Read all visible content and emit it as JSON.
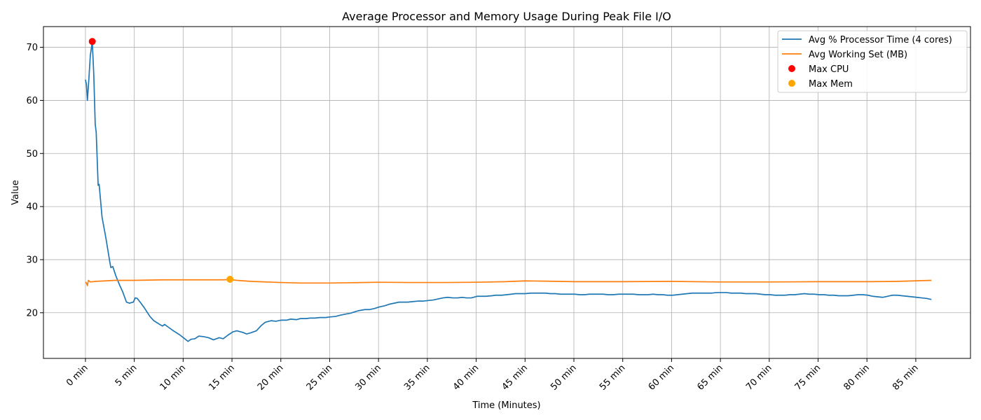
{
  "chart_data": {
    "type": "line",
    "title": "Average Processor and Memory Usage During Peak File I/O",
    "xlabel": "Time (Minutes)",
    "ylabel": "Value",
    "xlim": [
      -4.3,
      90.6
    ],
    "ylim": [
      11.4,
      73.9
    ],
    "grid": true,
    "legend_position": "top-right",
    "x_ticks": [
      0,
      5,
      10,
      15,
      20,
      25,
      30,
      35,
      40,
      45,
      50,
      55,
      60,
      65,
      70,
      75,
      80,
      85
    ],
    "x_tick_labels": [
      "0 min",
      "5 min",
      "10 min",
      "15 min",
      "20 min",
      "25 min",
      "30 min",
      "35 min",
      "40 min",
      "45 min",
      "50 min",
      "55 min",
      "60 min",
      "65 min",
      "70 min",
      "75 min",
      "80 min",
      "85 min"
    ],
    "y_ticks": [
      20,
      30,
      40,
      50,
      60,
      70
    ],
    "y_tick_labels": [
      "20",
      "30",
      "40",
      "50",
      "60",
      "70"
    ],
    "series": [
      {
        "name": "Avg % Processor Time (4 cores)",
        "color": "#1f77b4",
        "points": [
          [
            0,
            63.9
          ],
          [
            0.1,
            63
          ],
          [
            0.2,
            60
          ],
          [
            0.35,
            64
          ],
          [
            0.5,
            68.5
          ],
          [
            0.7,
            71
          ],
          [
            0.85,
            65
          ],
          [
            1.0,
            55.5
          ],
          [
            1.1,
            54
          ],
          [
            1.3,
            44
          ],
          [
            1.4,
            44.2
          ],
          [
            1.7,
            38
          ],
          [
            2.1,
            34
          ],
          [
            2.5,
            29.5
          ],
          [
            2.6,
            28.5
          ],
          [
            2.8,
            28.7
          ],
          [
            3.1,
            27
          ],
          [
            3.5,
            25.2
          ],
          [
            3.8,
            24
          ],
          [
            4.2,
            22
          ],
          [
            4.5,
            21.8
          ],
          [
            4.9,
            22
          ],
          [
            5.1,
            22.8
          ],
          [
            5.3,
            22.7
          ],
          [
            5.6,
            22
          ],
          [
            6.0,
            21
          ],
          [
            6.6,
            19.3
          ],
          [
            7.0,
            18.5
          ],
          [
            7.6,
            17.8
          ],
          [
            7.9,
            17.5
          ],
          [
            8.1,
            17.8
          ],
          [
            8.4,
            17.4
          ],
          [
            9.0,
            16.6
          ],
          [
            9.6,
            15.9
          ],
          [
            10.1,
            15.2
          ],
          [
            10.5,
            14.6
          ],
          [
            10.8,
            15
          ],
          [
            11.2,
            15.1
          ],
          [
            11.6,
            15.6
          ],
          [
            12.1,
            15.5
          ],
          [
            12.6,
            15.3
          ],
          [
            13.1,
            14.9
          ],
          [
            13.7,
            15.3
          ],
          [
            14.1,
            15.1
          ],
          [
            14.6,
            15.8
          ],
          [
            15.1,
            16.4
          ],
          [
            15.5,
            16.6
          ],
          [
            16.1,
            16.3
          ],
          [
            16.5,
            16
          ],
          [
            16.9,
            16.2
          ],
          [
            17.5,
            16.6
          ],
          [
            18.0,
            17.6
          ],
          [
            18.4,
            18.2
          ],
          [
            19.0,
            18.5
          ],
          [
            19.5,
            18.4
          ],
          [
            20.0,
            18.6
          ],
          [
            20.6,
            18.6
          ],
          [
            21.0,
            18.8
          ],
          [
            21.6,
            18.7
          ],
          [
            22.0,
            18.9
          ],
          [
            22.6,
            18.9
          ],
          [
            23.0,
            19.0
          ],
          [
            23.5,
            19.0
          ],
          [
            24.0,
            19.1
          ],
          [
            24.6,
            19.1
          ],
          [
            25.0,
            19.2
          ],
          [
            25.6,
            19.3
          ],
          [
            26.0,
            19.5
          ],
          [
            26.5,
            19.7
          ],
          [
            27.1,
            19.9
          ],
          [
            27.6,
            20.2
          ],
          [
            28.0,
            20.4
          ],
          [
            28.6,
            20.6
          ],
          [
            29.1,
            20.6
          ],
          [
            29.6,
            20.8
          ],
          [
            30.1,
            21.1
          ],
          [
            30.6,
            21.3
          ],
          [
            31.1,
            21.6
          ],
          [
            31.6,
            21.8
          ],
          [
            32.1,
            22.0
          ],
          [
            32.5,
            22.0
          ],
          [
            33.0,
            22.0
          ],
          [
            33.5,
            22.1
          ],
          [
            34.1,
            22.2
          ],
          [
            34.6,
            22.2
          ],
          [
            35.1,
            22.3
          ],
          [
            35.6,
            22.4
          ],
          [
            36.1,
            22.6
          ],
          [
            36.6,
            22.8
          ],
          [
            37.1,
            22.9
          ],
          [
            37.6,
            22.8
          ],
          [
            38.1,
            22.8
          ],
          [
            38.6,
            22.9
          ],
          [
            39.0,
            22.8
          ],
          [
            39.5,
            22.8
          ],
          [
            40.1,
            23.1
          ],
          [
            40.6,
            23.1
          ],
          [
            41.0,
            23.1
          ],
          [
            41.6,
            23.2
          ],
          [
            42.0,
            23.3
          ],
          [
            42.6,
            23.3
          ],
          [
            43.1,
            23.4
          ],
          [
            43.6,
            23.5
          ],
          [
            44.0,
            23.6
          ],
          [
            44.6,
            23.6
          ],
          [
            45.0,
            23.6
          ],
          [
            45.6,
            23.7
          ],
          [
            46.1,
            23.7
          ],
          [
            46.6,
            23.7
          ],
          [
            47.1,
            23.7
          ],
          [
            47.6,
            23.6
          ],
          [
            48.1,
            23.6
          ],
          [
            48.6,
            23.5
          ],
          [
            49.1,
            23.5
          ],
          [
            49.6,
            23.5
          ],
          [
            50.1,
            23.5
          ],
          [
            50.6,
            23.4
          ],
          [
            51.1,
            23.4
          ],
          [
            51.6,
            23.5
          ],
          [
            52.1,
            23.5
          ],
          [
            52.6,
            23.5
          ],
          [
            53.0,
            23.5
          ],
          [
            53.5,
            23.4
          ],
          [
            54.0,
            23.4
          ],
          [
            54.6,
            23.5
          ],
          [
            55.1,
            23.5
          ],
          [
            55.6,
            23.5
          ],
          [
            56.1,
            23.5
          ],
          [
            56.6,
            23.4
          ],
          [
            57.1,
            23.4
          ],
          [
            57.6,
            23.4
          ],
          [
            58.1,
            23.5
          ],
          [
            58.6,
            23.4
          ],
          [
            59.1,
            23.4
          ],
          [
            59.6,
            23.3
          ],
          [
            60.1,
            23.3
          ],
          [
            60.6,
            23.4
          ],
          [
            61.1,
            23.5
          ],
          [
            61.6,
            23.6
          ],
          [
            62.1,
            23.7
          ],
          [
            62.6,
            23.7
          ],
          [
            63.1,
            23.7
          ],
          [
            63.6,
            23.7
          ],
          [
            64.1,
            23.7
          ],
          [
            64.6,
            23.8
          ],
          [
            65.1,
            23.8
          ],
          [
            65.6,
            23.8
          ],
          [
            66.1,
            23.7
          ],
          [
            66.6,
            23.7
          ],
          [
            67.1,
            23.7
          ],
          [
            67.6,
            23.6
          ],
          [
            68.1,
            23.6
          ],
          [
            68.6,
            23.6
          ],
          [
            69.1,
            23.5
          ],
          [
            69.6,
            23.4
          ],
          [
            70.1,
            23.4
          ],
          [
            70.6,
            23.3
          ],
          [
            71.1,
            23.3
          ],
          [
            71.6,
            23.3
          ],
          [
            72.1,
            23.4
          ],
          [
            72.6,
            23.4
          ],
          [
            73.1,
            23.5
          ],
          [
            73.6,
            23.6
          ],
          [
            74.1,
            23.5
          ],
          [
            74.6,
            23.5
          ],
          [
            75.1,
            23.4
          ],
          [
            75.6,
            23.4
          ],
          [
            76.1,
            23.3
          ],
          [
            76.6,
            23.3
          ],
          [
            77.1,
            23.2
          ],
          [
            77.6,
            23.2
          ],
          [
            78.1,
            23.2
          ],
          [
            78.6,
            23.3
          ],
          [
            79.1,
            23.4
          ],
          [
            79.6,
            23.4
          ],
          [
            80.1,
            23.3
          ],
          [
            80.6,
            23.1
          ],
          [
            81.1,
            23.0
          ],
          [
            81.6,
            22.9
          ],
          [
            82.1,
            23.1
          ],
          [
            82.6,
            23.3
          ],
          [
            83.1,
            23.3
          ],
          [
            83.6,
            23.2
          ],
          [
            84.1,
            23.1
          ],
          [
            84.6,
            23.0
          ],
          [
            85.1,
            22.9
          ],
          [
            85.6,
            22.8
          ],
          [
            86.1,
            22.7
          ],
          [
            86.6,
            22.5
          ]
        ]
      },
      {
        "name": "Avg Working Set (MB)",
        "color": "#ff7f0e",
        "points": [
          [
            0,
            25.8
          ],
          [
            0.1,
            25.6
          ],
          [
            0.2,
            25.1
          ],
          [
            0.3,
            26.1
          ],
          [
            0.5,
            25.8
          ],
          [
            1.0,
            25.9
          ],
          [
            2.0,
            26.0
          ],
          [
            3.0,
            26.1
          ],
          [
            5.0,
            26.1
          ],
          [
            8.0,
            26.2
          ],
          [
            11.0,
            26.2
          ],
          [
            14.0,
            26.2
          ],
          [
            14.8,
            26.25
          ],
          [
            15.5,
            26.1
          ],
          [
            17.0,
            25.9
          ],
          [
            20.0,
            25.7
          ],
          [
            22.0,
            25.6
          ],
          [
            25.0,
            25.6
          ],
          [
            27.0,
            25.65
          ],
          [
            30.0,
            25.75
          ],
          [
            33.0,
            25.7
          ],
          [
            37.0,
            25.7
          ],
          [
            40.0,
            25.75
          ],
          [
            43.0,
            25.85
          ],
          [
            45.0,
            26.0
          ],
          [
            47.0,
            25.95
          ],
          [
            50.0,
            25.85
          ],
          [
            55.0,
            25.85
          ],
          [
            60.0,
            25.9
          ],
          [
            65.0,
            25.8
          ],
          [
            70.0,
            25.8
          ],
          [
            75.0,
            25.85
          ],
          [
            80.0,
            25.85
          ],
          [
            83.0,
            25.9
          ],
          [
            86.6,
            26.1
          ]
        ]
      },
      {
        "name": "Max CPU",
        "color": "#ff0000",
        "marker": "point",
        "points": [
          [
            0.7,
            71.1
          ]
        ]
      },
      {
        "name": "Max Mem",
        "color": "#ffa500",
        "marker": "point",
        "points": [
          [
            14.8,
            26.3
          ]
        ]
      }
    ]
  }
}
